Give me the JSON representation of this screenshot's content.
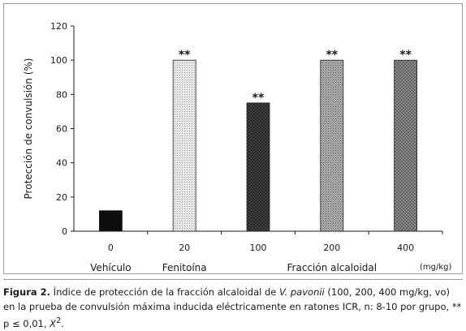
{
  "chart_data": {
    "type": "bar",
    "categories": [
      "0",
      "20",
      "100",
      "200",
      "400"
    ],
    "values": [
      12,
      100,
      75,
      100,
      100
    ],
    "annotations": [
      "",
      "**",
      "**",
      "**",
      "**"
    ],
    "group_labels": [
      {
        "text": "Vehículo",
        "category": "0"
      },
      {
        "text": "Fenitoína",
        "category": "20"
      },
      {
        "text": "Fracción alcaloidal",
        "category": "200"
      }
    ],
    "unit_label": "(mg/kg)",
    "ylabel": "Protección de convulsión (%)",
    "xlabel": "",
    "title": "",
    "ylim": [
      0,
      120
    ],
    "yticks": [
      0,
      20,
      40,
      60,
      80,
      100,
      120
    ],
    "grid": false,
    "bar_fills": [
      "black",
      "light-dotted",
      "dark-crosshatch",
      "medium-dotted",
      "medium-crosshatch"
    ],
    "colors": {
      "bar_black": "#0d0d0d",
      "bar_light": "#dcdcdc",
      "bar_dark": "#3c3c3c",
      "bar_medium": "#a8a8a8",
      "bar_medium_dark": "#8a8a8a",
      "axis": "#1a1a1a"
    }
  },
  "caption": {
    "label": "Figura 2.",
    "text_before_species": " Índice de protección de la fracción alcaloidal de ",
    "species": "V. pavonii",
    "text_after_species": " (100, 200, 400 mg/kg, vo) en la prueba de convulsión máxima inducida eléctricamente en ratones ICR, n: 8-10 por grupo, ** p ≤ 0,01, ",
    "chi": "X",
    "chi_sup": "2",
    "end": "."
  }
}
